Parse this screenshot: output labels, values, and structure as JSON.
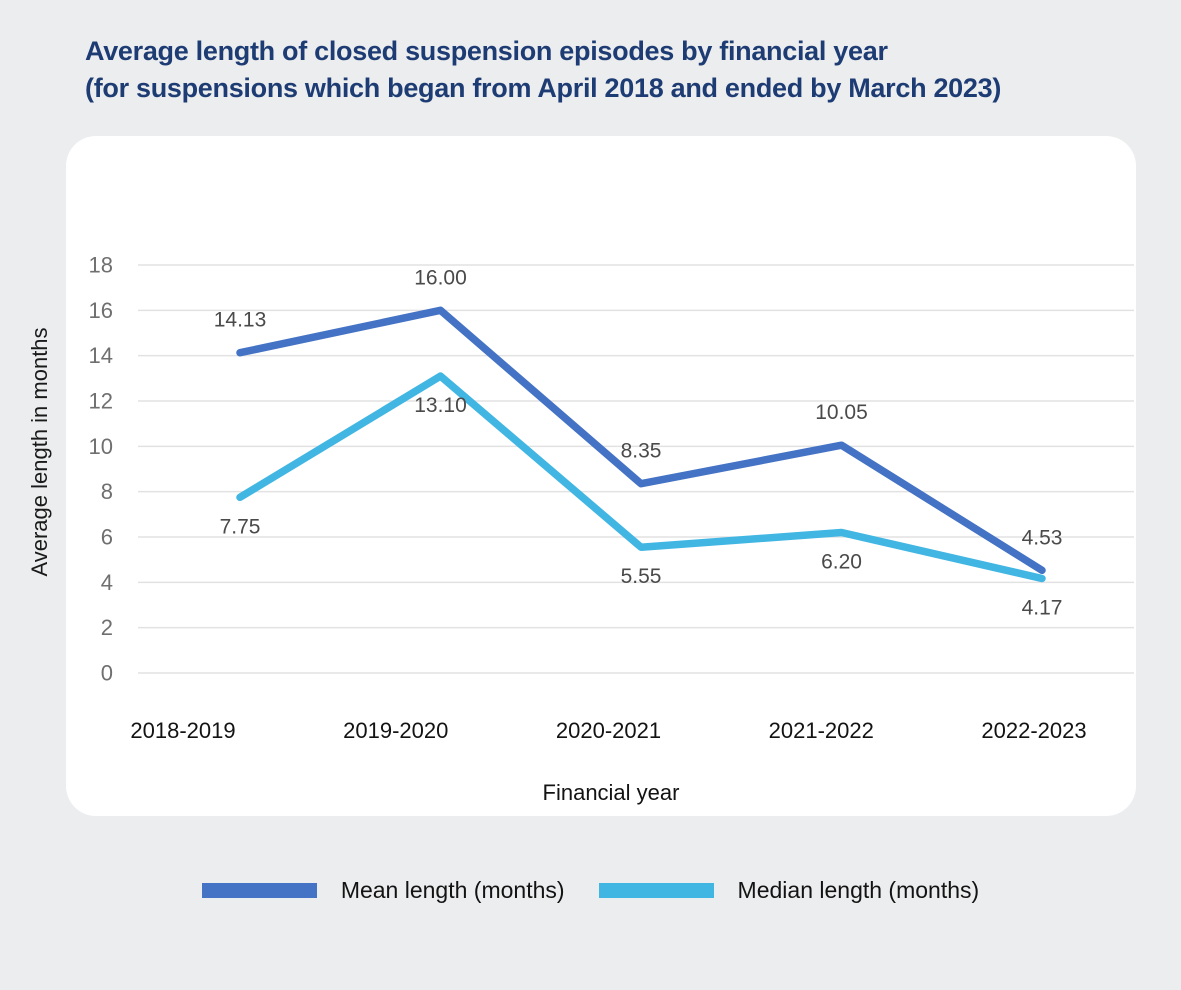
{
  "page": {
    "background_color": "#ECEDEE",
    "card_color": "#FFFFFF",
    "title_color": "#1E3C74"
  },
  "header": {
    "title_line1": "Average length of closed suspension episodes by financial year",
    "title_line2": "(for suspensions which began from April 2018 and ended by March 2023)"
  },
  "chart_data": {
    "type": "line",
    "title": "Average length of closed suspension episodes by financial year (for suspensions which began from April 2018 and ended by March 2023)",
    "categories": [
      "2018-2019",
      "2019-2020",
      "2020-2021",
      "2021-2022",
      "2022-2023"
    ],
    "series": [
      {
        "name": "Mean length (months)",
        "color": "#4472C4",
        "values": [
          14.13,
          16.0,
          8.35,
          10.05,
          4.53
        ],
        "point_labels": [
          "14.13",
          "16.00",
          "8.35",
          "10.05",
          "4.53"
        ],
        "label_position": "above"
      },
      {
        "name": "Median length (months)",
        "color": "#41B6E3",
        "values": [
          7.75,
          13.1,
          5.55,
          6.2,
          4.17
        ],
        "point_labels": [
          "7.75",
          "13.10",
          "5.55",
          "6.20",
          "4.17"
        ],
        "label_position": "below"
      }
    ],
    "xlabel": "Financial year",
    "ylabel": "Average length in months",
    "ylim": [
      0,
      18
    ],
    "ytick_step": 2,
    "yticks": [
      0,
      2,
      4,
      6,
      8,
      10,
      12,
      14,
      16,
      18
    ],
    "grid": true,
    "gridline_color": "#E2E2E2",
    "tick_label_color": "#6F6F6F",
    "data_label_color": "#4A4A4A",
    "axis_text_color": "#131313",
    "legend_position": "bottom"
  }
}
